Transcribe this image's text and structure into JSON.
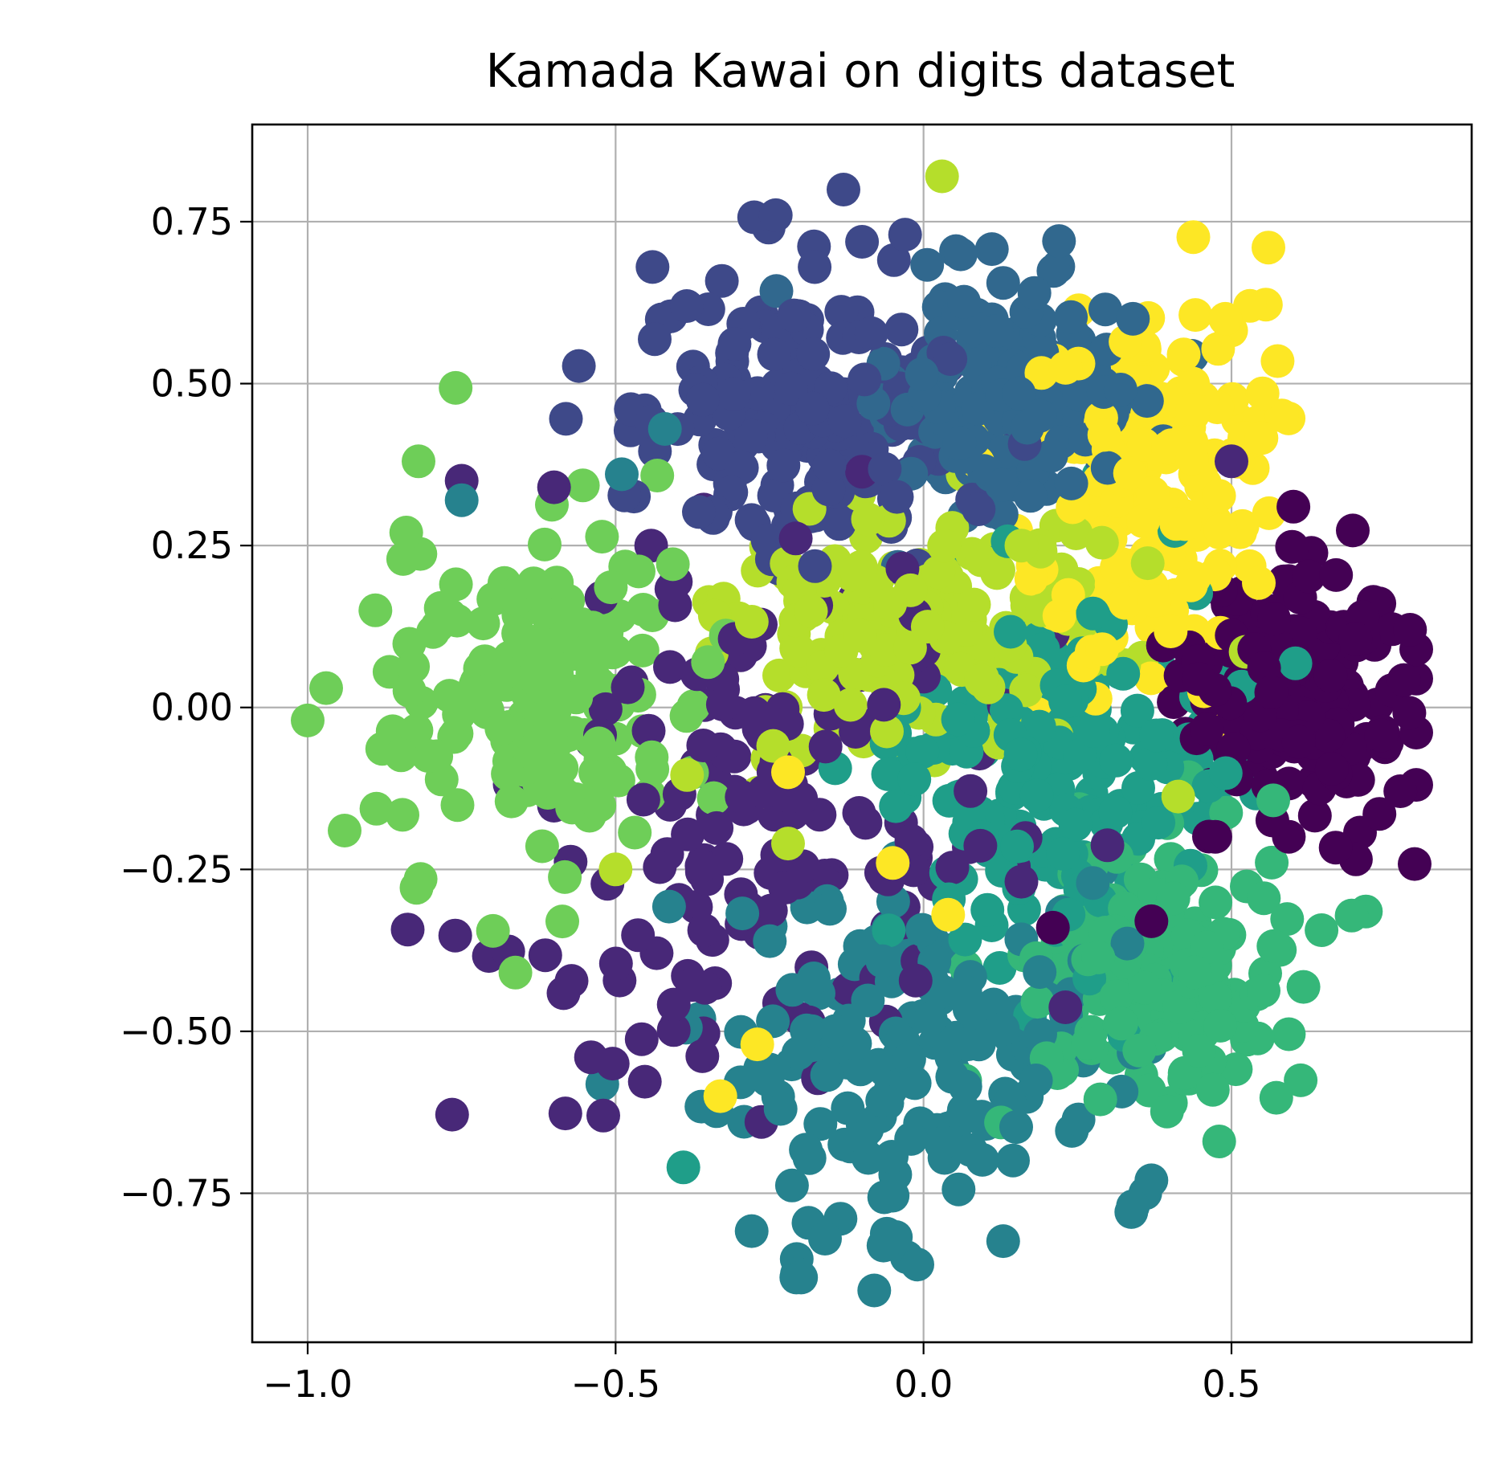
{
  "chart_data": {
    "type": "scatter",
    "title": "Kamada Kawai on digits dataset",
    "xlabel": "",
    "ylabel": "",
    "xlim": [
      -1.09,
      0.89
    ],
    "ylim": [
      -0.98,
      0.9
    ],
    "grid": true,
    "legend": "none",
    "colormap": "viridis",
    "xticks": [
      -1.0,
      -0.5,
      0.0,
      0.5
    ],
    "xtick_labels": [
      "−1.0",
      "−0.5",
      "0.0",
      "0.5"
    ],
    "yticks": [
      0.75,
      0.5,
      0.25,
      0.0,
      -0.25,
      -0.5,
      -0.75
    ],
    "ytick_labels": [
      "0.75",
      "0.50",
      "0.25",
      "0.00",
      "−0.25",
      "−0.50",
      "−0.75"
    ],
    "class_colors": [
      "#440154",
      "#482878",
      "#3e4989",
      "#31688e",
      "#26828e",
      "#1f9e89",
      "#35b779",
      "#6ece58",
      "#b5de2b",
      "#fde725"
    ],
    "clusters": [
      {
        "class": 0,
        "cx": 0.6,
        "cy": 0.02,
        "sx": 0.085,
        "sy": 0.1,
        "n": 180,
        "seed": 11
      },
      {
        "class": 1,
        "cx": -0.25,
        "cy": -0.18,
        "sx": 0.2,
        "sy": 0.2,
        "n": 180,
        "seed": 23
      },
      {
        "class": 2,
        "cx": -0.2,
        "cy": 0.45,
        "sx": 0.13,
        "sy": 0.12,
        "n": 180,
        "seed": 37
      },
      {
        "class": 3,
        "cx": 0.13,
        "cy": 0.47,
        "sx": 0.11,
        "sy": 0.09,
        "n": 180,
        "seed": 41
      },
      {
        "class": 4,
        "cx": -0.02,
        "cy": -0.55,
        "sx": 0.17,
        "sy": 0.14,
        "n": 180,
        "seed": 53
      },
      {
        "class": 5,
        "cx": 0.22,
        "cy": -0.1,
        "sx": 0.13,
        "sy": 0.14,
        "n": 180,
        "seed": 67
      },
      {
        "class": 6,
        "cx": 0.4,
        "cy": -0.4,
        "sx": 0.11,
        "sy": 0.1,
        "n": 180,
        "seed": 71
      },
      {
        "class": 7,
        "cx": -0.62,
        "cy": 0.02,
        "sx": 0.12,
        "sy": 0.15,
        "n": 180,
        "seed": 83
      },
      {
        "class": 8,
        "cx": -0.02,
        "cy": 0.12,
        "sx": 0.16,
        "sy": 0.1,
        "n": 180,
        "seed": 97
      },
      {
        "class": 9,
        "cx": 0.38,
        "cy": 0.34,
        "sx": 0.1,
        "sy": 0.15,
        "n": 180,
        "seed": 101
      }
    ],
    "points": [
      {
        "x": 0.03,
        "y": 0.82,
        "class": 8
      },
      {
        "x": 0.56,
        "y": 0.71,
        "class": 9
      },
      {
        "x": 0.22,
        "y": 0.72,
        "class": 3
      },
      {
        "x": -0.24,
        "y": 0.76,
        "class": 2
      },
      {
        "x": -0.03,
        "y": 0.73,
        "class": 2
      },
      {
        "x": -0.44,
        "y": 0.68,
        "class": 2
      },
      {
        "x": 0.53,
        "y": 0.62,
        "class": 9
      },
      {
        "x": 0.49,
        "y": 0.6,
        "class": 9
      },
      {
        "x": 0.5,
        "y": 0.38,
        "class": 1
      },
      {
        "x": 0.8,
        "y": 0.09,
        "class": 0
      },
      {
        "x": 0.79,
        "y": 0.12,
        "class": 0
      },
      {
        "x": -0.97,
        "y": 0.03,
        "class": 7
      },
      {
        "x": -1.0,
        "y": -0.02,
        "class": 7
      },
      {
        "x": -0.94,
        "y": -0.19,
        "class": 7
      },
      {
        "x": -0.89,
        "y": 0.15,
        "class": 7
      },
      {
        "x": -0.82,
        "y": 0.38,
        "class": 7
      },
      {
        "x": -0.84,
        "y": 0.27,
        "class": 7
      },
      {
        "x": -0.75,
        "y": 0.35,
        "class": 1
      },
      {
        "x": -0.75,
        "y": 0.32,
        "class": 4
      },
      {
        "x": -0.6,
        "y": 0.34,
        "class": 1
      },
      {
        "x": -0.08,
        "y": -0.9,
        "class": 4
      },
      {
        "x": -0.01,
        "y": -0.86,
        "class": 4
      },
      {
        "x": -0.16,
        "y": -0.82,
        "class": 4
      },
      {
        "x": 0.36,
        "y": -0.75,
        "class": 4
      },
      {
        "x": 0.37,
        "y": -0.73,
        "class": 4
      },
      {
        "x": 0.34,
        "y": -0.77,
        "class": 4
      },
      {
        "x": 0.48,
        "y": -0.67,
        "class": 6
      },
      {
        "x": -0.39,
        "y": -0.71,
        "class": 5
      },
      {
        "x": -0.52,
        "y": -0.63,
        "class": 1
      },
      {
        "x": -0.54,
        "y": -0.54,
        "class": 1
      },
      {
        "x": 0.21,
        "y": -0.34,
        "class": 0
      },
      {
        "x": 0.37,
        "y": -0.33,
        "class": 0
      },
      {
        "x": -0.22,
        "y": -0.21,
        "class": 8
      },
      {
        "x": -0.22,
        "y": -0.1,
        "class": 9
      },
      {
        "x": 0.04,
        "y": -0.32,
        "class": 9
      },
      {
        "x": -0.05,
        "y": -0.24,
        "class": 9
      },
      {
        "x": 0.29,
        "y": 0.09,
        "class": 9
      },
      {
        "x": -0.27,
        "y": -0.52,
        "class": 9
      },
      {
        "x": -0.33,
        "y": -0.6,
        "class": 9
      },
      {
        "x": -0.49,
        "y": 0.36,
        "class": 4
      },
      {
        "x": -0.42,
        "y": 0.43,
        "class": 4
      },
      {
        "x": 0.34,
        "y": 0.6,
        "class": 3
      },
      {
        "x": 0.18,
        "y": 0.64,
        "class": 3
      },
      {
        "x": -0.5,
        "y": -0.25,
        "class": 8
      },
      {
        "x": -0.35,
        "y": 0.07,
        "class": 7
      }
    ]
  }
}
